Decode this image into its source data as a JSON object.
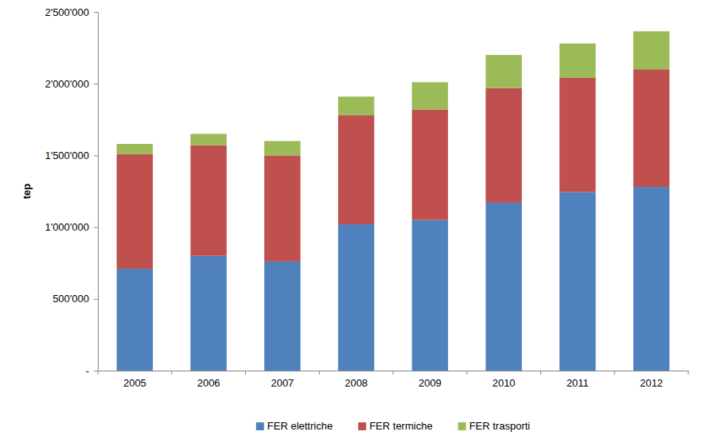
{
  "chart_data": {
    "type": "bar",
    "stacked": true,
    "grid": false,
    "legend": "bottom",
    "y_label": "tep",
    "categories": [
      "2005",
      "2006",
      "2007",
      "2008",
      "2009",
      "2010",
      "2011",
      "2012"
    ],
    "series": [
      {
        "name": "FER elettriche",
        "color": "#4f81bd",
        "values": [
          710000,
          800000,
          760000,
          1020000,
          1050000,
          1170000,
          1245000,
          1280000
        ]
      },
      {
        "name": "FER termiche",
        "color": "#c0504d",
        "values": [
          800000,
          770000,
          740000,
          760000,
          770000,
          800000,
          795000,
          820000
        ]
      },
      {
        "name": "FER trasporti",
        "color": "#9bbb59",
        "values": [
          70000,
          80000,
          100000,
          130000,
          190000,
          230000,
          240000,
          265000
        ]
      }
    ],
    "ylim": [
      0,
      2500000
    ],
    "yticks": [
      {
        "value": 0,
        "label": "-"
      },
      {
        "value": 500000,
        "label": "500'000"
      },
      {
        "value": 1000000,
        "label": "1'000'000"
      },
      {
        "value": 1500000,
        "label": "1'500'000"
      },
      {
        "value": 2000000,
        "label": "2'000'000"
      },
      {
        "value": 2500000,
        "label": "2'500'000"
      }
    ]
  }
}
